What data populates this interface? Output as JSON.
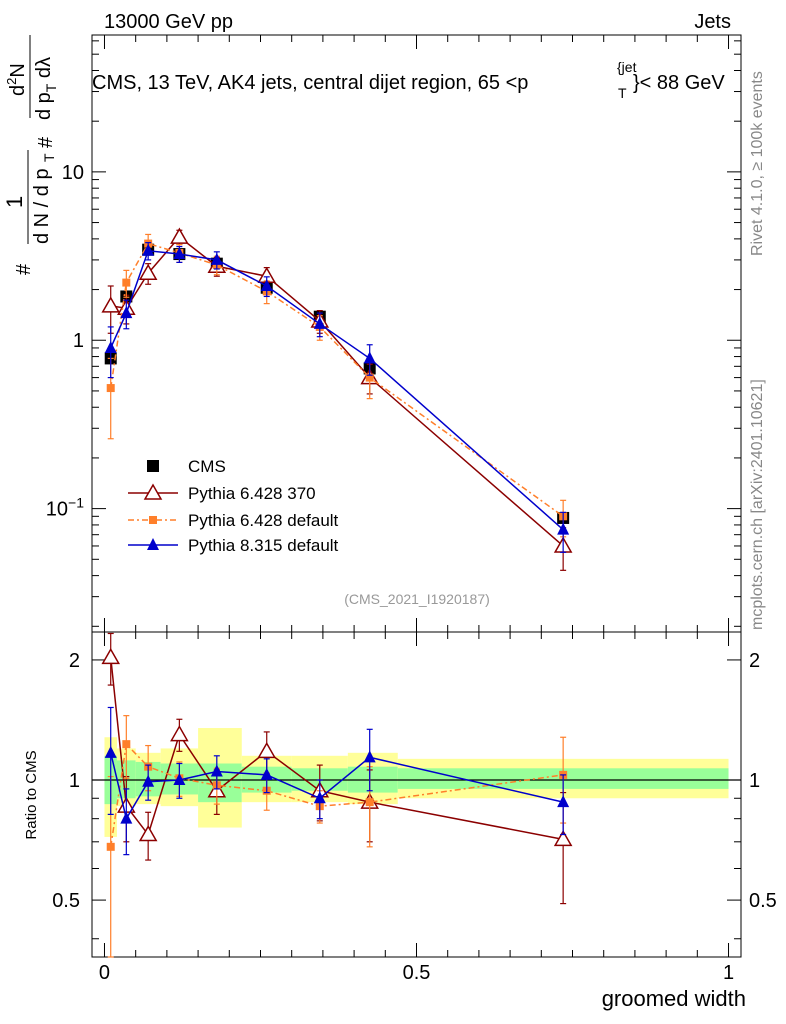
{
  "header": {
    "left": "13000 GeV pp",
    "right": "Jets",
    "title_main": "CMS, 13 TeV, AK4 jets, central dijet region, 65 <p",
    "title_sup": "{jet",
    "title_sub": "T",
    "title_end": "}< 88 GeV"
  },
  "side": {
    "rivet": "Rivet 4.1.0, ≥ 100k events",
    "mcplots": "mcplots.cern.ch [arXiv:2401.10621]"
  },
  "ylabel_main": {
    "hash1": "#",
    "one": "1",
    "den": "d N / d p",
    "den_sub": "T",
    "hash2": "#",
    "num2": "d",
    "num2_sup": "2",
    "num2_end": "N",
    "den2": "d p",
    "den2_sub": "T",
    "den2_end": " dλ"
  },
  "chart_data": [
    {
      "type": "line",
      "panel": "main",
      "title": "CMS, 13 TeV, AK4 jets, central dijet region, 65 < pT(jet) < 88 GeV",
      "xlabel": "groomed width",
      "ylabel": "1/(dN/dpT) d2N/(dpT dlambda)",
      "yscale": "log",
      "xlim": [
        -0.02,
        1.02
      ],
      "ylim": [
        0.0185,
        65
      ],
      "ytick_labels": [
        "10⁻¹",
        "1",
        "10"
      ],
      "ytick_values": [
        0.1,
        1,
        10
      ],
      "annotation": "(CMS_2021_I1920187)",
      "series": [
        {
          "name": "CMS",
          "color": "#000000",
          "marker": "square",
          "x": [
            0.01,
            0.035,
            0.07,
            0.12,
            0.18,
            0.26,
            0.345,
            0.425,
            0.735
          ],
          "y": [
            0.78,
            1.82,
            3.45,
            3.25,
            2.85,
            2.05,
            1.38,
            0.68,
            0.088
          ]
        },
        {
          "name": "Pythia 6.428 370",
          "color": "#8b0000",
          "marker": "open-triangle",
          "x": [
            0.01,
            0.035,
            0.07,
            0.12,
            0.18,
            0.26,
            0.345,
            0.425,
            0.735
          ],
          "y": [
            1.6,
            1.55,
            2.5,
            4.1,
            2.75,
            2.4,
            1.3,
            0.6,
            0.06
          ],
          "err": [
            0.5,
            0.3,
            0.35,
            0.4,
            0.35,
            0.3,
            0.2,
            0.12,
            0.017
          ]
        },
        {
          "name": "Pythia 6.428 default",
          "color": "#ff7f2a",
          "marker": "square-small",
          "x": [
            0.01,
            0.035,
            0.07,
            0.12,
            0.18,
            0.26,
            0.345,
            0.425,
            0.735
          ],
          "y": [
            0.52,
            2.2,
            3.75,
            3.3,
            2.8,
            1.95,
            1.2,
            0.6,
            0.09
          ],
          "err": [
            0.26,
            0.4,
            0.5,
            0.4,
            0.35,
            0.3,
            0.2,
            0.15,
            0.022
          ]
        },
        {
          "name": "Pythia 8.315 default",
          "color": "#0000cc",
          "marker": "triangle",
          "x": [
            0.01,
            0.035,
            0.07,
            0.12,
            0.18,
            0.26,
            0.345,
            0.425,
            0.735
          ],
          "y": [
            0.9,
            1.45,
            3.4,
            3.25,
            3.0,
            2.1,
            1.25,
            0.78,
            0.075
          ],
          "err": [
            0.3,
            0.28,
            0.4,
            0.35,
            0.35,
            0.28,
            0.2,
            0.16,
            0.02
          ]
        }
      ],
      "legend": {
        "placement": "mid-left",
        "entries": [
          "CMS",
          "Pythia 6.428 370",
          "Pythia 6.428 default",
          "Pythia 8.315 default"
        ]
      }
    },
    {
      "type": "line",
      "panel": "ratio",
      "xlabel": "groomed width",
      "ylabel": "Ratio to CMS",
      "xlim": [
        -0.02,
        1.02
      ],
      "ylim": [
        0.36,
        2.35
      ],
      "xticks": [
        0,
        0.5,
        1
      ],
      "xtick_labels": [
        "0",
        "0.5",
        "1"
      ],
      "yticks": [
        0.5,
        1,
        2
      ],
      "ytick_labels": [
        "0.5",
        "1",
        "2"
      ],
      "bands": {
        "bins": [
          [
            0,
            0.02
          ],
          [
            0.02,
            0.05
          ],
          [
            0.05,
            0.09
          ],
          [
            0.09,
            0.15
          ],
          [
            0.15,
            0.22
          ],
          [
            0.22,
            0.3
          ],
          [
            0.3,
            0.39
          ],
          [
            0.39,
            0.47
          ],
          [
            0.47,
            1.0
          ]
        ],
        "stat": [
          [
            0.87,
            1.15
          ],
          [
            0.9,
            1.12
          ],
          [
            0.91,
            1.11
          ],
          [
            0.92,
            1.1
          ],
          [
            0.88,
            1.1
          ],
          [
            0.93,
            1.08
          ],
          [
            0.94,
            1.07
          ],
          [
            0.93,
            1.08
          ],
          [
            0.95,
            1.07
          ]
        ],
        "total": [
          [
            0.72,
            1.28
          ],
          [
            0.86,
            1.2
          ],
          [
            0.87,
            1.17
          ],
          [
            0.86,
            1.2
          ],
          [
            0.76,
            1.35
          ],
          [
            0.88,
            1.15
          ],
          [
            0.88,
            1.15
          ],
          [
            0.87,
            1.17
          ],
          [
            0.9,
            1.13
          ]
        ],
        "stat_color": "#99ff99",
        "total_color": "#ffff99"
      },
      "series": [
        {
          "name": "Pythia 6.428 370",
          "color": "#8b0000",
          "marker": "open-triangle",
          "x": [
            0.01,
            0.035,
            0.07,
            0.12,
            0.18,
            0.26,
            0.345,
            0.425,
            0.735
          ],
          "y": [
            2.03,
            0.86,
            0.73,
            1.3,
            0.94,
            1.18,
            0.94,
            0.88,
            0.71
          ],
          "err": [
            0.3,
            0.16,
            0.1,
            0.12,
            0.12,
            0.14,
            0.15,
            0.18,
            0.22
          ]
        },
        {
          "name": "Pythia 6.428 default",
          "color": "#ff7f2a",
          "marker": "square-small",
          "x": [
            0.01,
            0.035,
            0.07,
            0.12,
            0.18,
            0.26,
            0.345,
            0.425,
            0.735
          ],
          "y": [
            0.68,
            1.23,
            1.08,
            1.01,
            0.97,
            0.94,
            0.86,
            0.88,
            1.03
          ],
          "err": [
            0.34,
            0.22,
            0.14,
            0.1,
            0.1,
            0.1,
            0.08,
            0.2,
            0.25
          ]
        },
        {
          "name": "Pythia 8.315 default",
          "color": "#0000cc",
          "marker": "triangle",
          "x": [
            0.01,
            0.035,
            0.07,
            0.12,
            0.18,
            0.26,
            0.345,
            0.425,
            0.735
          ],
          "y": [
            1.17,
            0.8,
            0.99,
            1.0,
            1.05,
            1.03,
            0.9,
            1.14,
            0.88
          ],
          "err": [
            0.35,
            0.15,
            0.1,
            0.1,
            0.1,
            0.1,
            0.1,
            0.2,
            0.15
          ]
        }
      ]
    }
  ]
}
